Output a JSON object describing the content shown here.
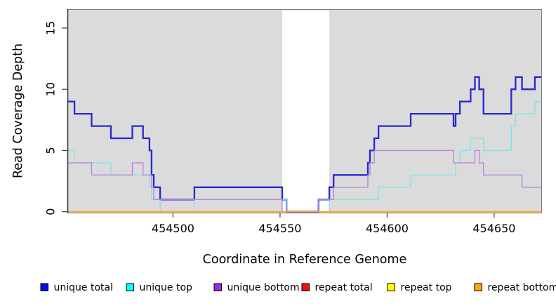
{
  "chart_data": {
    "type": "line",
    "subtype": "step-coverage-plot",
    "title": "",
    "xlabel": "Coordinate in Reference Genome",
    "ylabel": "Read Coverage Depth",
    "x_range_shown": [
      454451,
      454672
    ],
    "x_axis_ticks": [
      454500,
      454550,
      454600,
      454650
    ],
    "y_axis_ticks": [
      0,
      5,
      10,
      15
    ],
    "y_panel_max": 16.55,
    "grid": false,
    "legend_position": "bottom",
    "panel_background": "#DBDBDB",
    "masked_region": {
      "x_start": 454551,
      "x_end": 454573,
      "color": "#FFFFFF"
    },
    "series": [
      {
        "name": "unique total",
        "line_color": "#2727D3",
        "line_width": 2.3,
        "steps": [
          [
            454451,
            9
          ],
          [
            454454,
            8
          ],
          [
            454462,
            7
          ],
          [
            454471,
            6
          ],
          [
            454481,
            7
          ],
          [
            454486,
            6
          ],
          [
            454489,
            5
          ],
          [
            454490,
            3
          ],
          [
            454491,
            2
          ],
          [
            454494,
            1
          ],
          [
            454510,
            2
          ],
          [
            454551,
            1
          ],
          [
            454553,
            0
          ],
          [
            454568,
            1
          ],
          [
            454573,
            2
          ],
          [
            454575,
            3
          ],
          [
            454591,
            4
          ],
          [
            454592,
            5
          ],
          [
            454594,
            6
          ],
          [
            454596,
            7
          ],
          [
            454611,
            8
          ],
          [
            454631,
            7
          ],
          [
            454632,
            8
          ],
          [
            454634,
            9
          ],
          [
            454639,
            10
          ],
          [
            454641,
            11
          ],
          [
            454643,
            10
          ],
          [
            454645,
            8
          ],
          [
            454658,
            10
          ],
          [
            454660,
            11
          ],
          [
            454663,
            10
          ],
          [
            454669,
            11
          ]
        ]
      },
      {
        "name": "unique top",
        "line_color": "#7DE7E7",
        "line_width": 1.4,
        "steps": [
          [
            454451,
            5
          ],
          [
            454454,
            4
          ],
          [
            454471,
            3
          ],
          [
            454489,
            2
          ],
          [
            454490,
            1
          ],
          [
            454494,
            0
          ],
          [
            454510,
            1
          ],
          [
            454553,
            0
          ],
          [
            454573,
            1
          ],
          [
            454596,
            2
          ],
          [
            454611,
            3
          ],
          [
            454632,
            4
          ],
          [
            454634,
            5
          ],
          [
            454639,
            6
          ],
          [
            454645,
            5
          ],
          [
            454658,
            7
          ],
          [
            454660,
            8
          ],
          [
            454669,
            9
          ]
        ]
      },
      {
        "name": "unique bottom",
        "line_color": "#BA84DF",
        "line_width": 1.4,
        "steps": [
          [
            454451,
            4
          ],
          [
            454462,
            3
          ],
          [
            454481,
            4
          ],
          [
            454486,
            3
          ],
          [
            454490,
            2
          ],
          [
            454491,
            1
          ],
          [
            454551,
            0
          ],
          [
            454568,
            1
          ],
          [
            454575,
            2
          ],
          [
            454591,
            3
          ],
          [
            454592,
            4
          ],
          [
            454594,
            5
          ],
          [
            454631,
            4
          ],
          [
            454641,
            5
          ],
          [
            454643,
            4
          ],
          [
            454645,
            3
          ],
          [
            454663,
            2
          ]
        ]
      },
      {
        "name": "repeat total",
        "line_color": "#DD2222",
        "line_width": 1.4,
        "steps": [
          [
            454451,
            0
          ]
        ]
      },
      {
        "name": "repeat top",
        "line_color": "#EEEE22",
        "line_width": 1.4,
        "steps": [
          [
            454451,
            0
          ]
        ]
      },
      {
        "name": "repeat bottom",
        "line_color": "#FFA513",
        "line_width": 1.6,
        "steps": [
          [
            454451,
            0
          ]
        ]
      }
    ],
    "legend": [
      {
        "label": "unique total",
        "swatch_color": "#0A0AEE"
      },
      {
        "label": "unique top",
        "swatch_color": "#00FFFF"
      },
      {
        "label": "unique bottom",
        "swatch_color": "#9D2BD6"
      },
      {
        "label": "repeat total",
        "swatch_color": "#EE1111"
      },
      {
        "label": "repeat top",
        "swatch_color": "#FFFF00"
      },
      {
        "label": "repeat bottom",
        "swatch_color": "#FFA510"
      }
    ]
  }
}
